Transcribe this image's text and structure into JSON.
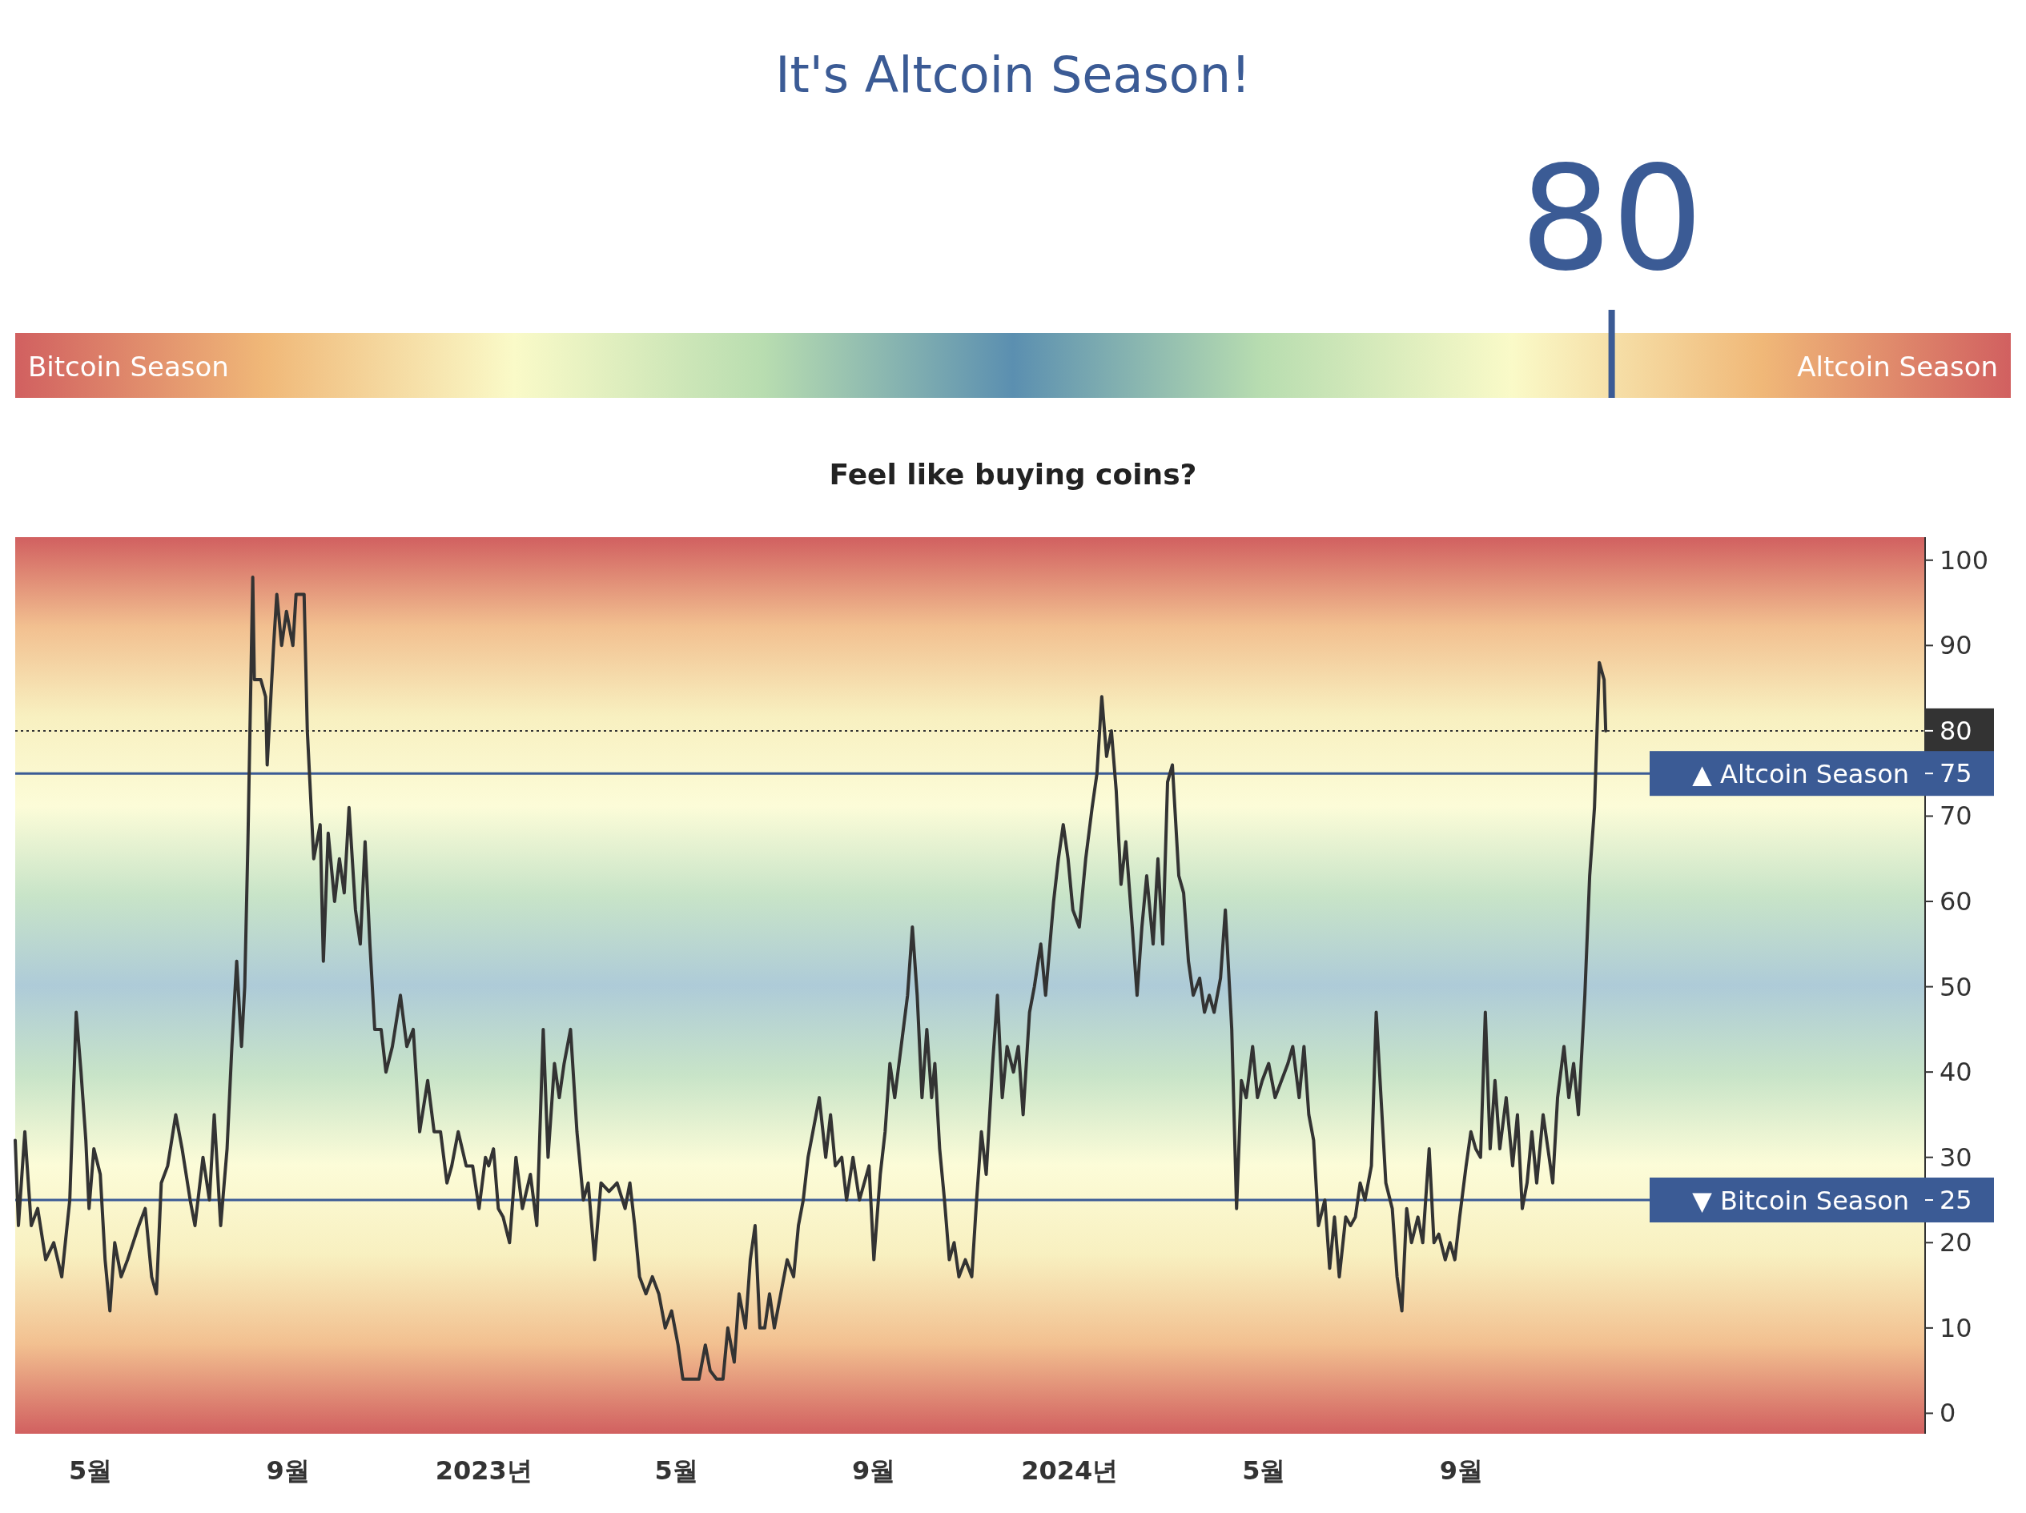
{
  "chart_data": [
    {
      "type": "other",
      "title": "It's Altcoin Season!",
      "values": [
        80
      ],
      "data_labels": true,
      "color": "#3b5b95",
      "annotations": [
        "Bitcoin Season",
        "Altcoin Season",
        "Feel like buying coins?"
      ]
    },
    {
      "type": "line",
      "xlim": [
        "2022-03-15",
        "2025-06-17"
      ],
      "ylim": [
        -2.4,
        102.7
      ],
      "yticks": [
        0,
        10,
        20,
        {
          "value": 25,
          "label": "25"
        },
        30,
        40,
        50,
        60,
        70,
        {
          "value": 75,
          "label": "75"
        },
        80,
        90,
        100
      ],
      "xticks": [
        {
          "value": "2022-05",
          "label": "5월"
        },
        {
          "value": "2022-09",
          "label": "9월"
        },
        {
          "value": "2023-01",
          "label": "2023년"
        },
        {
          "value": "2023-05",
          "label": "5월"
        },
        {
          "value": "2023-09",
          "label": "9월"
        },
        {
          "value": "2024-01",
          "label": "2024년"
        },
        {
          "value": "2024-05",
          "label": "5월"
        },
        {
          "value": "2024-09",
          "label": "9월"
        }
      ],
      "grid": false,
      "marker": "none",
      "line_style": "solid",
      "ref_lines": [
        {
          "axis": "y",
          "value": 80,
          "label": null,
          "color": "#333333",
          "line_style": "dotted"
        },
        {
          "axis": "y",
          "value": 75,
          "label": "▲ Altcoin Season",
          "color": "#3b5b95",
          "line_style": "solid"
        },
        {
          "axis": "y",
          "value": 25,
          "label": "▼ Bitcoin Season",
          "color": "#3b5b95",
          "line_style": "solid"
        }
      ],
      "x": [
        "2022-03-15",
        "2022-03-17",
        "2022-03-21",
        "2022-03-25",
        "2022-03-29",
        "2022-04-03",
        "2022-04-08",
        "2022-04-13",
        "2022-04-18",
        "2022-04-22",
        "2022-04-25",
        "2022-04-28",
        "2022-04-30",
        "2022-05-03",
        "2022-05-07",
        "2022-05-10",
        "2022-05-13",
        "2022-05-16",
        "2022-05-20",
        "2022-05-24",
        "2022-05-31",
        "2022-06-04",
        "2022-06-08",
        "2022-06-11",
        "2022-06-14",
        "2022-06-18",
        "2022-06-23",
        "2022-06-27",
        "2022-07-02",
        "2022-07-05",
        "2022-07-10",
        "2022-07-14",
        "2022-07-17",
        "2022-07-21",
        "2022-07-25",
        "2022-07-28",
        "2022-07-31",
        "2022-08-03",
        "2022-08-05",
        "2022-08-07",
        "2022-08-10",
        "2022-08-11",
        "2022-08-15",
        "2022-08-18",
        "2022-08-19",
        "2022-08-23",
        "2022-08-25",
        "2022-08-28",
        "2022-08-31",
        "2022-09-04",
        "2022-09-06",
        "2022-09-11",
        "2022-09-13",
        "2022-09-17",
        "2022-09-21",
        "2022-09-23",
        "2022-09-26",
        "2022-09-30",
        "2022-10-03",
        "2022-10-06",
        "2022-10-09",
        "2022-10-13",
        "2022-10-16",
        "2022-10-19",
        "2022-10-22",
        "2022-10-25",
        "2022-10-29",
        "2022-11-01",
        "2022-11-05",
        "2022-11-10",
        "2022-11-14",
        "2022-11-18",
        "2022-11-22",
        "2022-11-27",
        "2022-12-01",
        "2022-12-05",
        "2022-12-09",
        "2022-12-12",
        "2022-12-16",
        "2022-12-21",
        "2022-12-25",
        "2022-12-29",
        "2023-01-02",
        "2023-01-04",
        "2023-01-07",
        "2023-01-10",
        "2023-01-13",
        "2023-01-17",
        "2023-01-21",
        "2023-01-25",
        "2023-01-30",
        "2023-02-03",
        "2023-02-07",
        "2023-02-10",
        "2023-02-14",
        "2023-02-17",
        "2023-02-20",
        "2023-02-24",
        "2023-02-28",
        "2023-03-04",
        "2023-03-07",
        "2023-03-11",
        "2023-03-15",
        "2023-03-20",
        "2023-03-25",
        "2023-03-30",
        "2023-04-02",
        "2023-04-05",
        "2023-04-08",
        "2023-04-12",
        "2023-04-16",
        "2023-04-20",
        "2023-04-24",
        "2023-04-28",
        "2023-05-02",
        "2023-05-05",
        "2023-05-10",
        "2023-05-15",
        "2023-05-19",
        "2023-05-22",
        "2023-05-26",
        "2023-05-30",
        "2023-06-02",
        "2023-06-06",
        "2023-06-09",
        "2023-06-13",
        "2023-06-16",
        "2023-06-19",
        "2023-06-22",
        "2023-06-25",
        "2023-06-28",
        "2023-07-01",
        "2023-07-05",
        "2023-07-09",
        "2023-07-13",
        "2023-07-16",
        "2023-07-19",
        "2023-07-22",
        "2023-07-25",
        "2023-07-29",
        "2023-08-02",
        "2023-08-05",
        "2023-08-08",
        "2023-08-12",
        "2023-08-15",
        "2023-08-19",
        "2023-08-23",
        "2023-08-26",
        "2023-08-29",
        "2023-09-01",
        "2023-09-05",
        "2023-09-08",
        "2023-09-11",
        "2023-09-14",
        "2023-09-18",
        "2023-09-22",
        "2023-09-25",
        "2023-09-28",
        "2023-10-01",
        "2023-10-04",
        "2023-10-07",
        "2023-10-09",
        "2023-10-12",
        "2023-10-15",
        "2023-10-18",
        "2023-10-21",
        "2023-10-24",
        "2023-10-28",
        "2023-11-01",
        "2023-11-04",
        "2023-11-07",
        "2023-11-10",
        "2023-11-14",
        "2023-11-17",
        "2023-11-20",
        "2023-11-23",
        "2023-11-27",
        "2023-11-30",
        "2023-12-03",
        "2023-12-07",
        "2023-12-10",
        "2023-12-14",
        "2023-12-17",
        "2023-12-22",
        "2023-12-25",
        "2023-12-28",
        "2023-12-31",
        "2024-01-03",
        "2024-01-07",
        "2024-01-11",
        "2024-01-15",
        "2024-01-18",
        "2024-01-21",
        "2024-01-24",
        "2024-01-27",
        "2024-01-30",
        "2024-02-02",
        "2024-02-05",
        "2024-02-09",
        "2024-02-12",
        "2024-02-15",
        "2024-02-18",
        "2024-02-22",
        "2024-02-25",
        "2024-02-28",
        "2024-03-02",
        "2024-03-05",
        "2024-03-09",
        "2024-03-12",
        "2024-03-15",
        "2024-03-18",
        "2024-03-22",
        "2024-03-25",
        "2024-03-28",
        "2024-03-31",
        "2024-04-04",
        "2024-04-07",
        "2024-04-11",
        "2024-04-14",
        "2024-04-17",
        "2024-04-20",
        "2024-04-24",
        "2024-04-27",
        "2024-04-30",
        "2024-05-04",
        "2024-05-08",
        "2024-05-12",
        "2024-05-16",
        "2024-05-19",
        "2024-05-23",
        "2024-05-26",
        "2024-05-29",
        "2024-06-01",
        "2024-06-04",
        "2024-06-08",
        "2024-06-11",
        "2024-06-14",
        "2024-06-17",
        "2024-06-21",
        "2024-06-24",
        "2024-06-27",
        "2024-06-30",
        "2024-07-03",
        "2024-07-07",
        "2024-07-10",
        "2024-07-13",
        "2024-07-16",
        "2024-07-20",
        "2024-07-23",
        "2024-07-26",
        "2024-07-29",
        "2024-08-01",
        "2024-08-05",
        "2024-08-08",
        "2024-08-12",
        "2024-08-15",
        "2024-08-18",
        "2024-08-22",
        "2024-08-25",
        "2024-08-28",
        "2024-08-31",
        "2024-09-04",
        "2024-09-07",
        "2024-09-10",
        "2024-09-13",
        "2024-09-16",
        "2024-09-19",
        "2024-09-22",
        "2024-09-25",
        "2024-09-29",
        "2024-10-03",
        "2024-10-06",
        "2024-10-09",
        "2024-10-12",
        "2024-10-15",
        "2024-10-18",
        "2024-10-22",
        "2024-10-25",
        "2024-10-28",
        "2024-10-31",
        "2024-11-04",
        "2024-11-07",
        "2024-11-10",
        "2024-11-13",
        "2024-11-17",
        "2024-11-20",
        "2024-11-23",
        "2024-11-26",
        "2024-11-29",
        "2024-11-30"
      ],
      "series": [
        {
          "color": "#333333",
          "values": [
            32,
            22,
            33,
            22,
            24,
            18,
            20,
            16,
            25,
            47,
            40,
            32,
            24,
            31,
            28,
            18,
            12,
            20,
            16,
            18,
            22,
            24,
            16,
            14,
            27,
            29,
            35,
            31,
            25,
            22,
            30,
            25,
            35,
            22,
            31,
            43,
            53,
            43,
            50,
            67,
            98,
            86,
            86,
            84,
            76,
            90,
            96,
            90,
            94,
            90,
            96,
            96,
            80,
            65,
            69,
            53,
            68,
            60,
            65,
            61,
            71,
            59,
            55,
            67,
            55,
            45,
            45,
            40,
            43,
            49,
            43,
            45,
            33,
            39,
            33,
            33,
            27,
            29,
            33,
            29,
            29,
            24,
            30,
            29,
            31,
            24,
            23,
            20,
            30,
            24,
            28,
            22,
            45,
            30,
            41,
            37,
            41,
            45,
            33,
            25,
            27,
            18,
            27,
            26,
            27,
            24,
            27,
            22,
            16,
            14,
            16,
            14,
            10,
            12,
            8,
            4,
            4,
            4,
            8,
            5,
            4,
            4,
            10,
            6,
            14,
            10,
            18,
            22,
            10,
            10,
            14,
            10,
            14,
            18,
            16,
            22,
            25,
            30,
            33,
            37,
            30,
            35,
            29,
            30,
            25,
            30,
            25,
            27,
            29,
            18,
            28,
            33,
            41,
            37,
            43,
            49,
            57,
            49,
            37,
            45,
            37,
            41,
            31,
            25,
            18,
            20,
            16,
            18,
            16,
            25,
            33,
            28,
            41,
            49,
            37,
            43,
            40,
            43,
            35,
            47,
            50,
            55,
            49,
            60,
            65,
            69,
            65,
            59,
            57,
            65,
            71,
            75,
            84,
            77,
            80,
            73,
            62,
            67,
            57,
            49,
            57,
            63,
            55,
            65,
            55,
            74,
            76,
            63,
            61,
            53,
            49,
            51,
            47,
            49,
            47,
            51,
            59,
            45,
            24,
            39,
            37,
            43,
            37,
            39,
            41,
            37,
            39,
            41,
            43,
            37,
            43,
            35,
            32,
            22,
            25,
            17,
            23,
            16,
            23,
            22,
            23,
            27,
            25,
            29,
            47,
            37,
            27,
            24,
            16,
            12,
            24,
            20,
            23,
            20,
            31,
            20,
            21,
            18,
            20,
            18,
            23,
            29,
            33,
            31,
            30,
            47,
            31,
            39,
            31,
            37,
            29,
            35,
            24,
            27,
            33,
            27,
            35,
            31,
            27,
            37,
            43,
            37,
            41,
            35,
            49,
            63,
            71,
            88,
            86,
            80
          ]
        }
      ]
    }
  ]
}
